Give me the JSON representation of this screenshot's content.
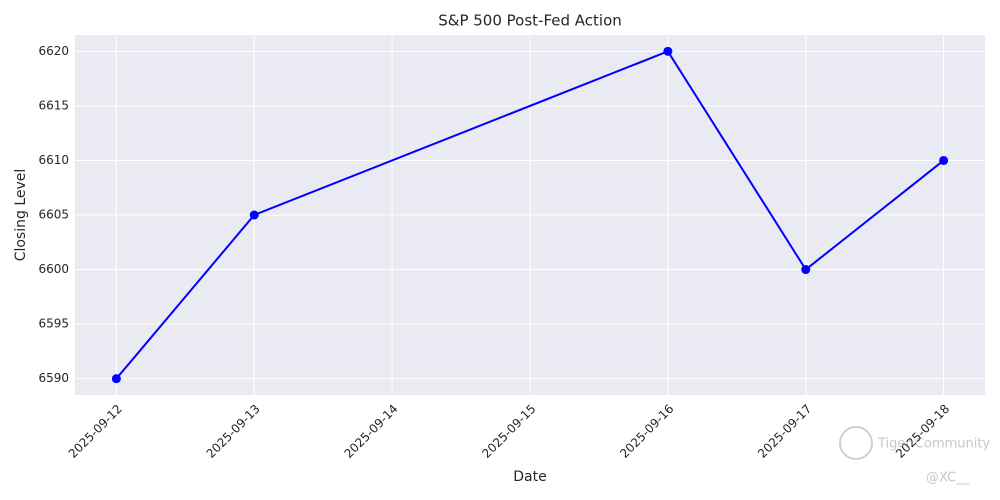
{
  "chart_data": {
    "type": "line",
    "title": "S&P 500 Post-Fed Action",
    "x_label": "Date",
    "y_label": "Closing Level",
    "x": [
      "2025-09-12",
      "2025-09-13",
      "2025-09-16",
      "2025-09-17",
      "2025-09-18"
    ],
    "values": [
      6590,
      6605,
      6620,
      6600,
      6610
    ],
    "color": "#0000ff",
    "marker": "circle",
    "xlim": [
      "2025-09-12",
      "2025-09-18"
    ],
    "xticks": [
      "2025-09-12",
      "2025-09-13",
      "2025-09-14",
      "2025-09-15",
      "2025-09-16",
      "2025-09-17",
      "2025-09-18"
    ],
    "ylim": [
      6588.5,
      6621.5
    ],
    "yticks": [
      6590,
      6595,
      6600,
      6605,
      6610,
      6615,
      6620
    ],
    "grid": true
  },
  "watermark": {
    "text": "Tiger Community",
    "handle": "@XC__"
  }
}
